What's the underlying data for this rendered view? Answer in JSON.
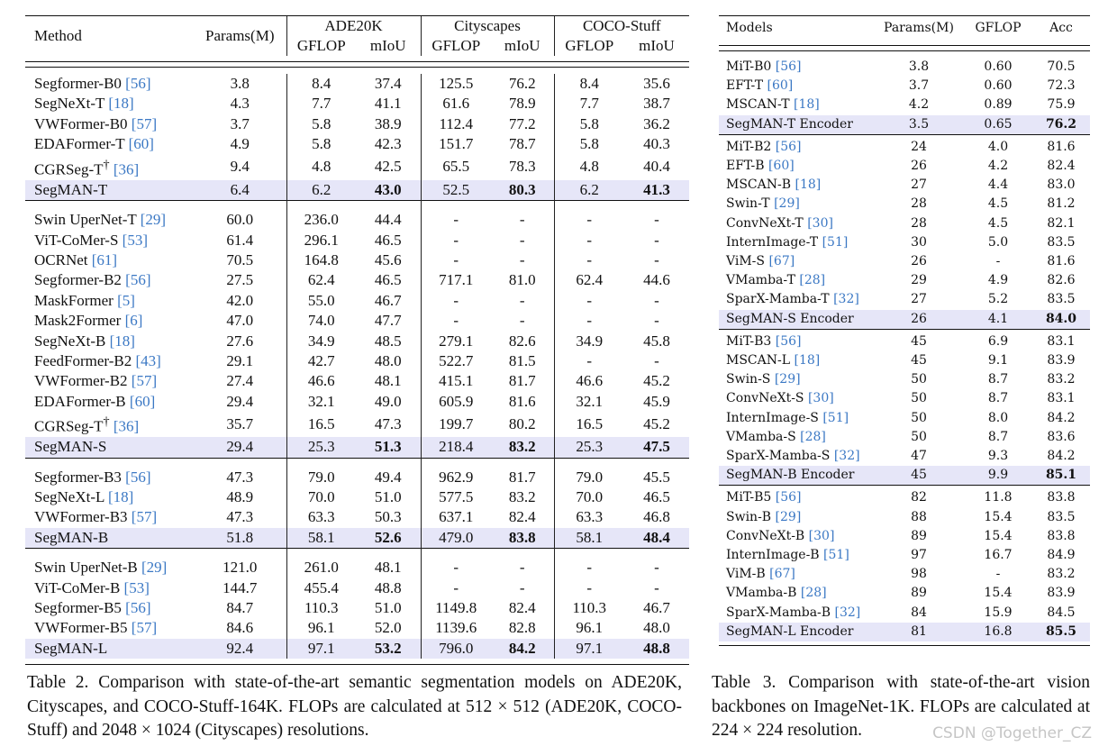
{
  "table2": {
    "headers": {
      "method": "Method",
      "params": "Params(M)",
      "datasets": [
        "ADE20K",
        "Cityscapes",
        "COCO-Stuff"
      ],
      "gflop": "GFLOP",
      "miou": "mIoU"
    },
    "groups": [
      [
        {
          "name": "Segformer-B0",
          "ref": "[56]",
          "vals": [
            "3.8",
            "8.4",
            "37.4",
            "125.5",
            "76.2",
            "8.4",
            "35.6"
          ]
        },
        {
          "name": "SegNeXt-T",
          "ref": "[18]",
          "vals": [
            "4.3",
            "7.7",
            "41.1",
            "61.6",
            "78.9",
            "7.7",
            "38.7"
          ]
        },
        {
          "name": "VWFormer-B0",
          "ref": "[57]",
          "vals": [
            "3.7",
            "5.8",
            "38.9",
            "112.4",
            "77.2",
            "5.8",
            "36.2"
          ]
        },
        {
          "name": "EDAFormer-T",
          "ref": "[60]",
          "vals": [
            "4.9",
            "5.8",
            "42.3",
            "151.7",
            "78.7",
            "5.8",
            "40.3"
          ]
        },
        {
          "name": "CGRSeg-T",
          "sup": "†",
          "ref": "[36]",
          "vals": [
            "9.4",
            "4.8",
            "42.5",
            "65.5",
            "78.3",
            "4.8",
            "40.4"
          ]
        },
        {
          "name": "SegMAN-T",
          "ref": "",
          "highlight": true,
          "vals": [
            "6.4",
            "6.2",
            "43.0",
            "52.5",
            "80.3",
            "6.2",
            "41.3"
          ]
        }
      ],
      [
        {
          "name": "Swin UperNet-T",
          "ref": "[29]",
          "vals": [
            "60.0",
            "236.0",
            "44.4",
            "-",
            "-",
            "-",
            "-"
          ]
        },
        {
          "name": "ViT-CoMer-S",
          "ref": "[53]",
          "vals": [
            "61.4",
            "296.1",
            "46.5",
            "-",
            "-",
            "-",
            "-"
          ]
        },
        {
          "name": "OCRNet",
          "ref": "[61]",
          "vals": [
            "70.5",
            "164.8",
            "45.6",
            "-",
            "-",
            "-",
            "-"
          ]
        },
        {
          "name": "Segformer-B2",
          "ref": "[56]",
          "vals": [
            "27.5",
            "62.4",
            "46.5",
            "717.1",
            "81.0",
            "62.4",
            "44.6"
          ]
        },
        {
          "name": "MaskFormer",
          "ref": "[5]",
          "vals": [
            "42.0",
            "55.0",
            "46.7",
            "-",
            "-",
            "-",
            "-"
          ]
        },
        {
          "name": "Mask2Former",
          "ref": "[6]",
          "vals": [
            "47.0",
            "74.0",
            "47.7",
            "-",
            "-",
            "-",
            "-"
          ]
        },
        {
          "name": "SegNeXt-B",
          "ref": "[18]",
          "vals": [
            "27.6",
            "34.9",
            "48.5",
            "279.1",
            "82.6",
            "34.9",
            "45.8"
          ]
        },
        {
          "name": "FeedFormer-B2",
          "ref": "[43]",
          "vals": [
            "29.1",
            "42.7",
            "48.0",
            "522.7",
            "81.5",
            "-",
            "-"
          ]
        },
        {
          "name": "VWFormer-B2",
          "ref": "[57]",
          "vals": [
            "27.4",
            "46.6",
            "48.1",
            "415.1",
            "81.7",
            "46.6",
            "45.2"
          ]
        },
        {
          "name": "EDAFormer-B",
          "ref": "[60]",
          "vals": [
            "29.4",
            "32.1",
            "49.0",
            "605.9",
            "81.6",
            "32.1",
            "45.9"
          ]
        },
        {
          "name": "CGRSeg-T",
          "sup": "†",
          "ref": "[36]",
          "vals": [
            "35.7",
            "16.5",
            "47.3",
            "199.7",
            "80.2",
            "16.5",
            "45.2"
          ]
        },
        {
          "name": "SegMAN-S",
          "ref": "",
          "highlight": true,
          "vals": [
            "29.4",
            "25.3",
            "51.3",
            "218.4",
            "83.2",
            "25.3",
            "47.5"
          ]
        }
      ],
      [
        {
          "name": "Segformer-B3",
          "ref": "[56]",
          "vals": [
            "47.3",
            "79.0",
            "49.4",
            "962.9",
            "81.7",
            "79.0",
            "45.5"
          ]
        },
        {
          "name": "SegNeXt-L",
          "ref": "[18]",
          "vals": [
            "48.9",
            "70.0",
            "51.0",
            "577.5",
            "83.2",
            "70.0",
            "46.5"
          ]
        },
        {
          "name": "VWFormer-B3",
          "ref": "[57]",
          "vals": [
            "47.3",
            "63.3",
            "50.3",
            "637.1",
            "82.4",
            "63.3",
            "46.8"
          ]
        },
        {
          "name": "SegMAN-B",
          "ref": "",
          "highlight": true,
          "vals": [
            "51.8",
            "58.1",
            "52.6",
            "479.0",
            "83.8",
            "58.1",
            "48.4"
          ]
        }
      ],
      [
        {
          "name": "Swin UperNet-B",
          "ref": "[29]",
          "vals": [
            "121.0",
            "261.0",
            "48.1",
            "-",
            "-",
            "-",
            "-"
          ]
        },
        {
          "name": "ViT-CoMer-B",
          "ref": "[53]",
          "vals": [
            "144.7",
            "455.4",
            "48.8",
            "-",
            "-",
            "-",
            "-"
          ]
        },
        {
          "name": "Segformer-B5",
          "ref": "[56]",
          "vals": [
            "84.7",
            "110.3",
            "51.0",
            "1149.8",
            "82.4",
            "110.3",
            "46.7"
          ]
        },
        {
          "name": "VWFormer-B5",
          "ref": "[57]",
          "vals": [
            "84.6",
            "96.1",
            "52.0",
            "1139.6",
            "82.8",
            "96.1",
            "48.0"
          ]
        },
        {
          "name": "SegMAN-L",
          "ref": "",
          "highlight": true,
          "vals": [
            "92.4",
            "97.1",
            "53.2",
            "796.0",
            "84.2",
            "97.1",
            "48.8"
          ]
        }
      ]
    ],
    "caption": "Table 2.  Comparison with state-of-the-art semantic segmentation models on ADE20K, Cityscapes, and COCO-Stuff-164K. FLOPs are calculated at 512 × 512 (ADE20K, COCO-Stuff) and 2048 × 1024 (Cityscapes) resolutions."
  },
  "table3": {
    "headers": [
      "Models",
      "Params(M)",
      "GFLOP",
      "Acc"
    ],
    "groups": [
      [
        {
          "name": "MiT-B0",
          "ref": "[56]",
          "vals": [
            "3.8",
            "0.60",
            "70.5"
          ]
        },
        {
          "name": "EFT-T",
          "ref": "[60]",
          "vals": [
            "3.7",
            "0.60",
            "72.3"
          ]
        },
        {
          "name": "MSCAN-T",
          "ref": "[18]",
          "vals": [
            "4.2",
            "0.89",
            "75.9"
          ]
        },
        {
          "name": "SegMAN-T Encoder",
          "ref": "",
          "highlight": true,
          "vals": [
            "3.5",
            "0.65",
            "76.2"
          ]
        }
      ],
      [
        {
          "name": "MiT-B2",
          "ref": "[56]",
          "vals": [
            "24",
            "4.0",
            "81.6"
          ]
        },
        {
          "name": "EFT-B",
          "ref": "[60]",
          "vals": [
            "26",
            "4.2",
            "82.4"
          ]
        },
        {
          "name": "MSCAN-B",
          "ref": "[18]",
          "vals": [
            "27",
            "4.4",
            "83.0"
          ]
        },
        {
          "name": "Swin-T",
          "ref": "[29]",
          "vals": [
            "28",
            "4.5",
            "81.2"
          ]
        },
        {
          "name": "ConvNeXt-T",
          "ref": "[30]",
          "vals": [
            "28",
            "4.5",
            "82.1"
          ]
        },
        {
          "name": "InternImage-T",
          "ref": "[51]",
          "vals": [
            "30",
            "5.0",
            "83.5"
          ]
        },
        {
          "name": "ViM-S",
          "ref": "[67]",
          "vals": [
            "26",
            "-",
            "81.6"
          ]
        },
        {
          "name": "VMamba-T",
          "ref": "[28]",
          "vals": [
            "29",
            "4.9",
            "82.6"
          ]
        },
        {
          "name": "SparX-Mamba-T",
          "ref": "[32]",
          "vals": [
            "27",
            "5.2",
            "83.5"
          ]
        },
        {
          "name": "SegMAN-S Encoder",
          "ref": "",
          "highlight": true,
          "vals": [
            "26",
            "4.1",
            "84.0"
          ]
        }
      ],
      [
        {
          "name": "MiT-B3",
          "ref": "[56]",
          "vals": [
            "45",
            "6.9",
            "83.1"
          ]
        },
        {
          "name": "MSCAN-L",
          "ref": "[18]",
          "vals": [
            "45",
            "9.1",
            "83.9"
          ]
        },
        {
          "name": "Swin-S",
          "ref": "[29]",
          "vals": [
            "50",
            "8.7",
            "83.2"
          ]
        },
        {
          "name": "ConvNeXt-S",
          "ref": "[30]",
          "vals": [
            "50",
            "8.7",
            "83.1"
          ]
        },
        {
          "name": "InternImage-S",
          "ref": "[51]",
          "vals": [
            "50",
            "8.0",
            "84.2"
          ]
        },
        {
          "name": "VMamba-S",
          "ref": "[28]",
          "vals": [
            "50",
            "8.7",
            "83.6"
          ]
        },
        {
          "name": "SparX-Mamba-S",
          "ref": "[32]",
          "vals": [
            "47",
            "9.3",
            "84.2"
          ]
        },
        {
          "name": "SegMAN-B Encoder",
          "ref": "",
          "highlight": true,
          "vals": [
            "45",
            "9.9",
            "85.1"
          ]
        }
      ],
      [
        {
          "name": "MiT-B5",
          "ref": "[56]",
          "vals": [
            "82",
            "11.8",
            "83.8"
          ]
        },
        {
          "name": "Swin-B",
          "ref": "[29]",
          "vals": [
            "88",
            "15.4",
            "83.5"
          ]
        },
        {
          "name": "ConvNeXt-B",
          "ref": "[30]",
          "vals": [
            "89",
            "15.4",
            "83.8"
          ]
        },
        {
          "name": "InternImage-B",
          "ref": "[51]",
          "vals": [
            "97",
            "16.7",
            "84.9"
          ]
        },
        {
          "name": "ViM-B",
          "ref": "[67]",
          "vals": [
            "98",
            "-",
            "83.2"
          ]
        },
        {
          "name": "VMamba-B",
          "ref": "[28]",
          "vals": [
            "89",
            "15.4",
            "83.9"
          ]
        },
        {
          "name": "SparX-Mamba-B",
          "ref": "[32]",
          "vals": [
            "84",
            "15.9",
            "84.5"
          ]
        },
        {
          "name": "SegMAN-L Encoder",
          "ref": "",
          "highlight": true,
          "vals": [
            "81",
            "16.8",
            "85.5"
          ]
        }
      ]
    ],
    "caption": "Table 3.  Comparison with state-of-the-art vision backbones on ImageNet-1K. FLOPs are calculated at 224 × 224 resolution."
  },
  "watermark": "CSDN @Together_CZ",
  "colors": {
    "highlight": "#e6e6f8",
    "reference": "#3b78c4"
  }
}
